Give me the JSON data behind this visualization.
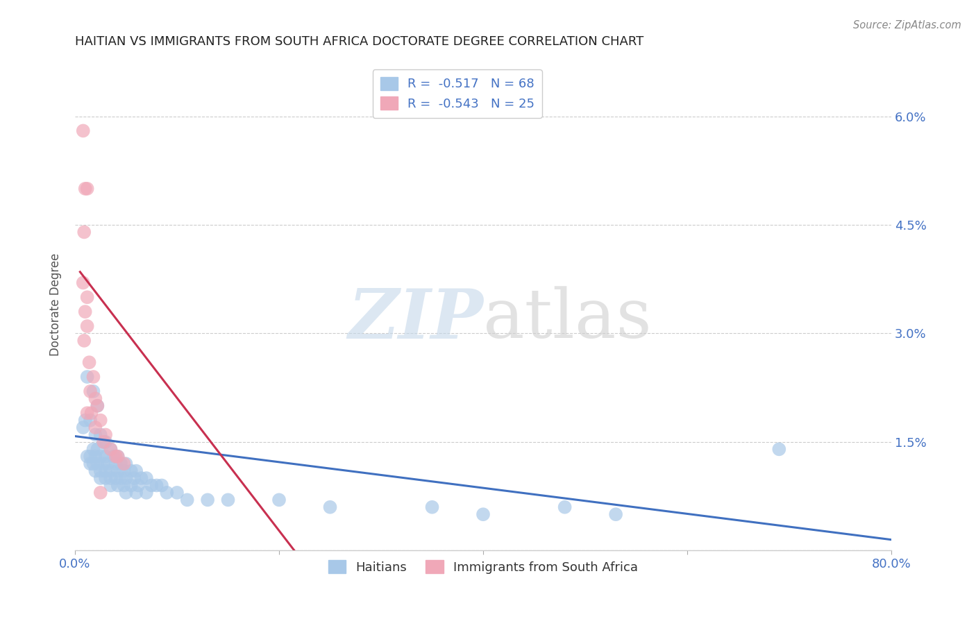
{
  "title": "HAITIAN VS IMMIGRANTS FROM SOUTH AFRICA DOCTORATE DEGREE CORRELATION CHART",
  "source": "Source: ZipAtlas.com",
  "ylabel": "Doctorate Degree",
  "xlim": [
    0.0,
    0.8
  ],
  "ylim": [
    0.0,
    0.068
  ],
  "xticks": [
    0.0,
    0.2,
    0.4,
    0.6,
    0.8
  ],
  "xtick_labels": [
    "0.0%",
    "",
    "",
    "",
    "80.0%"
  ],
  "yticks": [
    0.0,
    0.015,
    0.03,
    0.045,
    0.06
  ],
  "ytick_labels": [
    "",
    "1.5%",
    "3.0%",
    "4.5%",
    "6.0%"
  ],
  "legend1_label": "R =  -0.517   N = 68",
  "legend2_label": "R =  -0.543   N = 25",
  "legend_bottom_label1": "Haitians",
  "legend_bottom_label2": "Immigrants from South Africa",
  "blue_color": "#a8c8e8",
  "pink_color": "#f0a8b8",
  "blue_line_color": "#4070c0",
  "pink_line_color": "#c83050",
  "blue_scatter": [
    [
      0.012,
      0.024
    ],
    [
      0.018,
      0.022
    ],
    [
      0.022,
      0.02
    ],
    [
      0.01,
      0.018
    ],
    [
      0.015,
      0.018
    ],
    [
      0.008,
      0.017
    ],
    [
      0.02,
      0.016
    ],
    [
      0.025,
      0.016
    ],
    [
      0.03,
      0.015
    ],
    [
      0.028,
      0.015
    ],
    [
      0.022,
      0.014
    ],
    [
      0.018,
      0.014
    ],
    [
      0.035,
      0.014
    ],
    [
      0.015,
      0.013
    ],
    [
      0.02,
      0.013
    ],
    [
      0.025,
      0.013
    ],
    [
      0.03,
      0.013
    ],
    [
      0.038,
      0.013
    ],
    [
      0.012,
      0.013
    ],
    [
      0.042,
      0.013
    ],
    [
      0.015,
      0.012
    ],
    [
      0.018,
      0.012
    ],
    [
      0.022,
      0.012
    ],
    [
      0.028,
      0.012
    ],
    [
      0.032,
      0.012
    ],
    [
      0.04,
      0.012
    ],
    [
      0.045,
      0.012
    ],
    [
      0.05,
      0.012
    ],
    [
      0.02,
      0.011
    ],
    [
      0.025,
      0.011
    ],
    [
      0.03,
      0.011
    ],
    [
      0.035,
      0.011
    ],
    [
      0.042,
      0.011
    ],
    [
      0.048,
      0.011
    ],
    [
      0.055,
      0.011
    ],
    [
      0.06,
      0.011
    ],
    [
      0.025,
      0.01
    ],
    [
      0.03,
      0.01
    ],
    [
      0.035,
      0.01
    ],
    [
      0.04,
      0.01
    ],
    [
      0.045,
      0.01
    ],
    [
      0.05,
      0.01
    ],
    [
      0.058,
      0.01
    ],
    [
      0.065,
      0.01
    ],
    [
      0.07,
      0.01
    ],
    [
      0.035,
      0.009
    ],
    [
      0.042,
      0.009
    ],
    [
      0.048,
      0.009
    ],
    [
      0.055,
      0.009
    ],
    [
      0.062,
      0.009
    ],
    [
      0.075,
      0.009
    ],
    [
      0.08,
      0.009
    ],
    [
      0.085,
      0.009
    ],
    [
      0.05,
      0.008
    ],
    [
      0.06,
      0.008
    ],
    [
      0.07,
      0.008
    ],
    [
      0.09,
      0.008
    ],
    [
      0.1,
      0.008
    ],
    [
      0.11,
      0.007
    ],
    [
      0.13,
      0.007
    ],
    [
      0.15,
      0.007
    ],
    [
      0.2,
      0.007
    ],
    [
      0.25,
      0.006
    ],
    [
      0.35,
      0.006
    ],
    [
      0.4,
      0.005
    ],
    [
      0.48,
      0.006
    ],
    [
      0.53,
      0.005
    ],
    [
      0.69,
      0.014
    ]
  ],
  "pink_scatter": [
    [
      0.008,
      0.058
    ],
    [
      0.01,
      0.05
    ],
    [
      0.012,
      0.05
    ],
    [
      0.009,
      0.044
    ],
    [
      0.008,
      0.037
    ],
    [
      0.012,
      0.035
    ],
    [
      0.01,
      0.033
    ],
    [
      0.012,
      0.031
    ],
    [
      0.009,
      0.029
    ],
    [
      0.014,
      0.026
    ],
    [
      0.018,
      0.024
    ],
    [
      0.015,
      0.022
    ],
    [
      0.02,
      0.021
    ],
    [
      0.022,
      0.02
    ],
    [
      0.016,
      0.019
    ],
    [
      0.012,
      0.019
    ],
    [
      0.025,
      0.018
    ],
    [
      0.02,
      0.017
    ],
    [
      0.03,
      0.016
    ],
    [
      0.028,
      0.015
    ],
    [
      0.035,
      0.014
    ],
    [
      0.04,
      0.013
    ],
    [
      0.042,
      0.013
    ],
    [
      0.048,
      0.012
    ],
    [
      0.025,
      0.008
    ]
  ],
  "blue_line_x": [
    0.0,
    0.8
  ],
  "blue_line_y": [
    0.0158,
    0.0015
  ],
  "pink_line_x": [
    0.005,
    0.215
  ],
  "pink_line_y": [
    0.0385,
    0.0
  ],
  "background_color": "#ffffff",
  "grid_color": "#cccccc"
}
